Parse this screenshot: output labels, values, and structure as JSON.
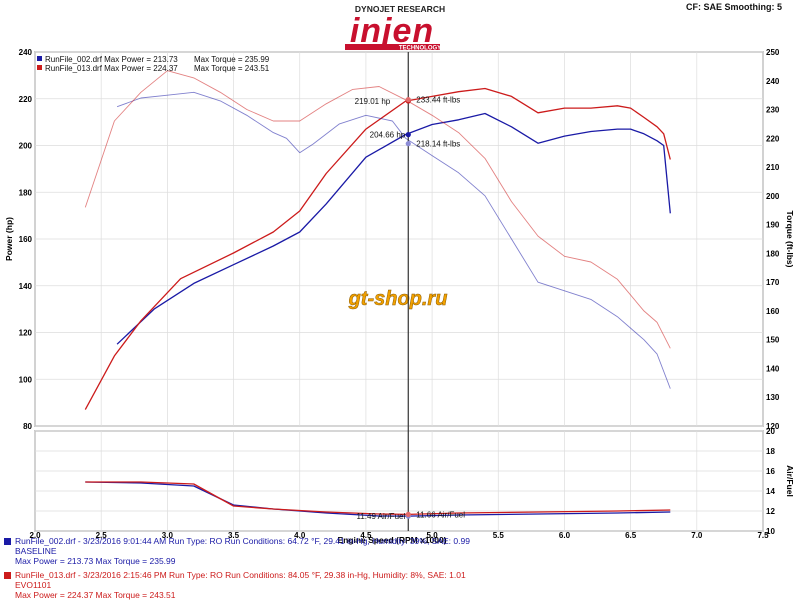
{
  "header": {
    "brand_top": "DYNOJET RESEARCH",
    "brand_logo": "injen",
    "brand_sub": "TECHNOLOGY",
    "settings": "CF: SAE  Smoothing: 5"
  },
  "legend": [
    {
      "text": "RunFile_002.drf Max Power = 213.73",
      "text2": "Max Torque = 235.99",
      "color": "#1a1aa6"
    },
    {
      "text": "RunFile_013.drf Max Power = 224.37",
      "text2": "Max Torque = 243.51",
      "color": "#cc1b1b"
    }
  ],
  "watermark": "gt-shop.ru",
  "cursor_labels": {
    "power_red": "219.01 hp",
    "torque_red": "233.44 ft-lbs",
    "power_blue": "204.66 hp",
    "torque_blue": "218.14 ft-lbs",
    "afr_blue": "11.49 Air/Fuel",
    "afr_red": "11.66 Air/Fuel"
  },
  "runs": [
    {
      "line1": "RunFile_002.drf - 3/23/2016 9:01:44 AM  Run Type: RO  Run Conditions: 64.72 °F, 29.41 in-Hg,  Humidity:  39%, SAE: 0.99",
      "line2": "BASELINE",
      "line3": "Max Power = 213.73  Max Torque = 235.99",
      "color": "#1a1aa6"
    },
    {
      "line1": "RunFile_013.drf - 3/23/2016 2:15:46 PM  Run Type: RO  Run Conditions: 84.05 °F, 29.38 in-Hg,  Humidity:  8%, SAE: 1.01",
      "line2": "EVO1101",
      "line3": "Max Power = 224.37  Max Torque = 243.51",
      "color": "#cc1b1b"
    }
  ],
  "chart_data": {
    "type": "line",
    "xlabel": "Engine Speed (RPM x1000)",
    "ylabel_left": "Power (hp)",
    "ylabel_right": "Torque (ft-lbs)",
    "ylabel_afr": "Air/Fuel",
    "xlim": [
      2.0,
      7.5
    ],
    "ylim_power": [
      80,
      240
    ],
    "ylim_torque": [
      120,
      250
    ],
    "ylim_afr": [
      10,
      20
    ],
    "x_ticks": [
      "2.0",
      "2.5",
      "3.0",
      "3.5",
      "4.0",
      "4.5",
      "5.0",
      "5.5",
      "6.0",
      "6.5",
      "7.0",
      "7.5"
    ],
    "power_ticks": [
      "80",
      "100",
      "120",
      "140",
      "160",
      "180",
      "200",
      "220",
      "240"
    ],
    "torque_ticks": [
      "120",
      "130",
      "140",
      "150",
      "160",
      "170",
      "180",
      "190",
      "200",
      "210",
      "220",
      "230",
      "240",
      "250"
    ],
    "afr_ticks": [
      "10",
      "12",
      "14",
      "16",
      "18",
      "20"
    ],
    "cursor_x": 4.82,
    "series": [
      {
        "name": "RunFile_002.drf",
        "kind": "power",
        "color": "#1a1aa6",
        "x": [
          2.62,
          2.9,
          3.2,
          3.5,
          3.8,
          4.0,
          4.2,
          4.5,
          4.8,
          5.0,
          5.2,
          5.4,
          5.6,
          5.8,
          6.0,
          6.2,
          6.4,
          6.5,
          6.6,
          6.7,
          6.75,
          6.8
        ],
        "values": [
          115,
          130,
          141,
          149,
          157,
          163,
          175,
          195,
          204.7,
          209,
          211,
          213.7,
          208,
          201,
          204,
          206,
          207,
          207,
          205,
          202,
          200,
          171
        ]
      },
      {
        "name": "RunFile_013.drf",
        "kind": "power",
        "color": "#cc1b1b",
        "x": [
          2.38,
          2.6,
          2.8,
          3.1,
          3.5,
          3.8,
          4.0,
          4.2,
          4.5,
          4.8,
          5.0,
          5.2,
          5.4,
          5.6,
          5.8,
          6.0,
          6.2,
          6.4,
          6.5,
          6.6,
          6.7,
          6.75,
          6.8
        ],
        "values": [
          87,
          110,
          125,
          143,
          154,
          163,
          172,
          188,
          207,
          219,
          221,
          223,
          224.4,
          221,
          214,
          216,
          216,
          217,
          216,
          212,
          208,
          205,
          194
        ]
      },
      {
        "name": "RunFile_002.drf",
        "kind": "torque",
        "color": "#1a1aa6",
        "x": [
          2.62,
          2.8,
          3.0,
          3.2,
          3.4,
          3.6,
          3.8,
          3.9,
          4.0,
          4.1,
          4.3,
          4.5,
          4.7,
          4.8,
          5.0,
          5.2,
          5.4,
          5.6,
          5.8,
          6.0,
          6.2,
          6.4,
          6.6,
          6.7,
          6.8
        ],
        "values": [
          231,
          234,
          235,
          236,
          233,
          228,
          222,
          220,
          215,
          218,
          225,
          228,
          226,
          220,
          214,
          208,
          200,
          185,
          170,
          167,
          164,
          158,
          150,
          145,
          133
        ]
      },
      {
        "name": "RunFile_013.drf",
        "kind": "torque",
        "color": "#cc1b1b",
        "x": [
          2.38,
          2.6,
          2.8,
          3.0,
          3.2,
          3.4,
          3.6,
          3.8,
          4.0,
          4.2,
          4.4,
          4.6,
          4.8,
          5.0,
          5.2,
          5.4,
          5.6,
          5.8,
          6.0,
          6.2,
          6.4,
          6.6,
          6.7,
          6.8
        ],
        "values": [
          196,
          226,
          236,
          243.5,
          241,
          236,
          230,
          226,
          226,
          232,
          237,
          238,
          233.4,
          228,
          222,
          213,
          198,
          186,
          179,
          177,
          171,
          160,
          156,
          147
        ]
      },
      {
        "name": "RunFile_002.drf",
        "kind": "afr",
        "color": "#1a1aa6",
        "x": [
          2.38,
          2.8,
          3.2,
          3.5,
          3.8,
          4.2,
          4.6,
          4.82,
          5.2,
          5.8,
          6.4,
          6.8
        ],
        "values": [
          14.9,
          14.8,
          14.5,
          12.6,
          12.2,
          11.8,
          11.5,
          11.49,
          11.6,
          11.7,
          11.8,
          11.9
        ]
      },
      {
        "name": "RunFile_013.drf",
        "kind": "afr",
        "color": "#cc1b1b",
        "x": [
          2.38,
          2.8,
          3.2,
          3.5,
          3.8,
          4.2,
          4.6,
          4.82,
          5.2,
          5.8,
          6.4,
          6.8
        ],
        "values": [
          14.9,
          14.9,
          14.7,
          12.5,
          12.2,
          11.9,
          11.7,
          11.66,
          11.8,
          11.9,
          12.0,
          12.1
        ]
      }
    ]
  }
}
